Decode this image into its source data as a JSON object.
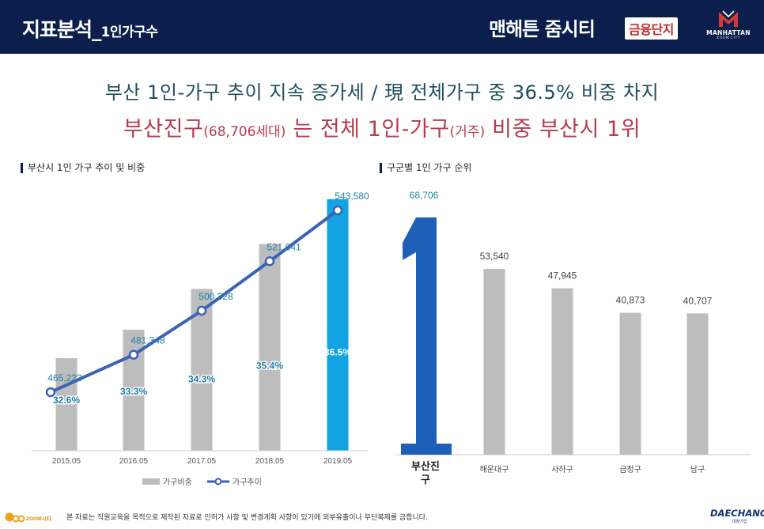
{
  "header": {
    "title_main": "지표분석_",
    "title_sub": "1인가구수",
    "project_name": "맨해튼 줌시티",
    "project_badge": "금융단지",
    "brand_name": "MANHATTAN",
    "brand_sub": "ZOOM CITY"
  },
  "headline": {
    "line1": "부산 1인-가구 추이 지속 증가세 / 現 전체가구 중 36.5% 비중 차지",
    "line2_part1": "부산진구",
    "line2_part2": "(68,706세대)",
    "line2_part3": " 는 전체 1인-가구",
    "line2_part4": "(거주)",
    "line2_part5": " 비중 부산시 1위"
  },
  "colors": {
    "header_bg": "#0c1f4c",
    "bar_gray": "#bdbdbd",
    "bar_highlight": "#13a3e3",
    "line_blue": "#3c62b5",
    "rank_blue": "#1e5fb8",
    "label_blue": "#1f7da8",
    "headline_red": "#b83b4e",
    "headline_teal": "#1f4e5c"
  },
  "chart_data": [
    {
      "type": "bar",
      "title": "부산시 1인 가구 추이 및 비중",
      "categories": [
        "2015.05",
        "2016.05",
        "2017.05",
        "2018.05",
        "2019.05"
      ],
      "series": [
        {
          "name": "가구비중",
          "kind": "bar",
          "values": [
            32.6,
            33.3,
            34.3,
            35.4,
            36.5
          ],
          "labels": [
            "32.6%",
            "33.3%",
            "34.3%",
            "35.4%",
            "36.5%"
          ]
        },
        {
          "name": "가구추이",
          "kind": "line",
          "values": [
            465223,
            481348,
            500328,
            521641,
            543580
          ],
          "labels": [
            "465,223",
            "481,348",
            "500,328",
            "521,641",
            "543,580"
          ]
        }
      ],
      "highlight_index": 4,
      "bar_ylim": [
        0,
        40
      ],
      "line_ylim": [
        440000,
        548000
      ],
      "legend": [
        "가구비중",
        "가구추이"
      ],
      "legend_position": "bottom"
    },
    {
      "type": "bar",
      "title": "구군별 1인 가구 순위",
      "categories": [
        "부산진구",
        "해운대구",
        "사하구",
        "금정구",
        "남구"
      ],
      "values": [
        68706,
        53540,
        47945,
        40873,
        40707
      ],
      "labels": [
        "68,706",
        "53,540",
        "47,945",
        "40,873",
        "40,707"
      ],
      "rank_symbol": "1",
      "highlight_index": 0,
      "ylim": [
        0,
        70000
      ]
    }
  ],
  "footer": {
    "logo_text": "ZOOM시티",
    "note": "본 자료는 직원교육을 목적으로 제작된 자료로 인허가 사항 및 변경계획 사항이 있기에 외부유출이나 무단복제를 금합니다.",
    "brand": "DAECHANG",
    "brand_sub": "대창기업"
  }
}
